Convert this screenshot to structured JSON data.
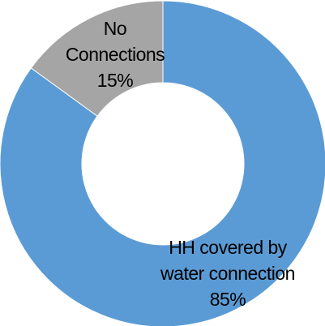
{
  "chart_data": {
    "type": "pie",
    "variant": "doughnut",
    "title": "",
    "slices": [
      {
        "label_lines": [
          "HH covered by",
          "water connection"
        ],
        "percent_label": "85%",
        "value": 85,
        "color": "#5b9bd5"
      },
      {
        "label_lines": [
          "No",
          "Connections"
        ],
        "percent_label": "15%",
        "value": 15,
        "color": "#a5a5a5"
      }
    ],
    "legend": "none"
  }
}
